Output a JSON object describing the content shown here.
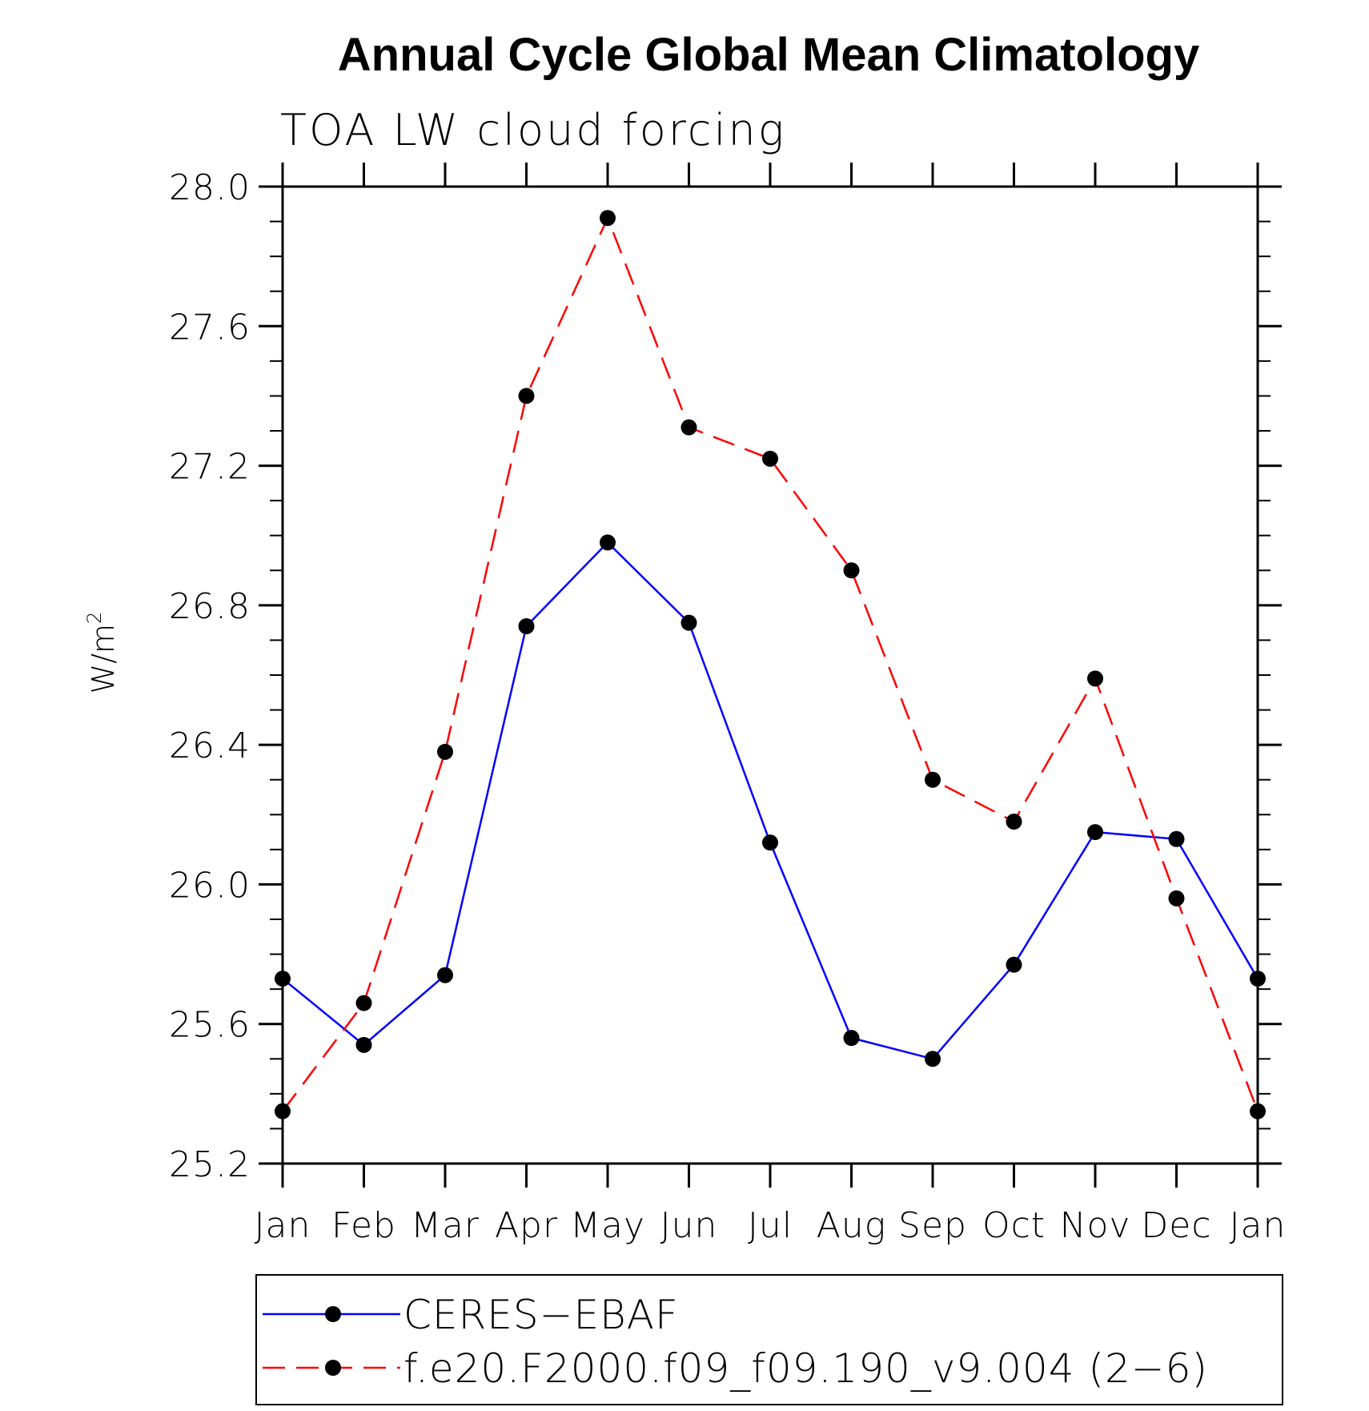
{
  "chart_data": {
    "type": "line",
    "title": "Annual Cycle Global Mean Climatology",
    "subtitle": "TOA LW cloud forcing",
    "ylabel": "W/m",
    "ylabel_superscript": "2",
    "xlabel": "",
    "categories": [
      "Jan",
      "Feb",
      "Mar",
      "Apr",
      "May",
      "Jun",
      "Jul",
      "Aug",
      "Sep",
      "Oct",
      "Nov",
      "Dec",
      "Jan"
    ],
    "ylim": [
      25.2,
      28.0
    ],
    "yticks": [
      "25.2",
      "25.6",
      "26.0",
      "26.4",
      "26.8",
      "27.2",
      "27.6",
      "28.0"
    ],
    "series": [
      {
        "name": "CERES−EBAF",
        "color": "#0000ff",
        "dash": "solid",
        "values": [
          25.73,
          25.54,
          25.74,
          26.74,
          26.98,
          26.75,
          26.12,
          25.56,
          25.5,
          25.77,
          26.15,
          26.13,
          25.73
        ]
      },
      {
        "name": "f.e20.F2000.f09_f09.190_v9.004 (2−6)",
        "color": "#ff0000",
        "dash": "dashed",
        "values": [
          25.35,
          25.66,
          26.38,
          27.4,
          27.91,
          27.31,
          27.22,
          26.9,
          26.3,
          26.18,
          26.59,
          25.96,
          25.35
        ]
      }
    ],
    "marker_color": "#000000",
    "grid": false,
    "legend_position": "bottom"
  }
}
